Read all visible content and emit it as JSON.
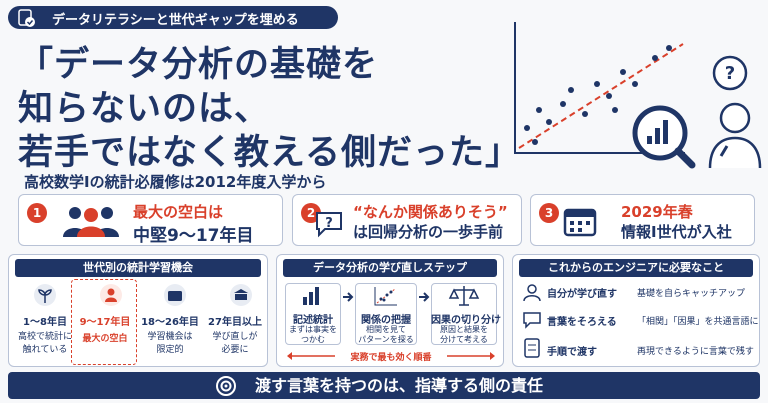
{
  "header": {
    "tag": "データリテラシーと世代ギャップを埋める",
    "title_lines": [
      "「データ分析の基礎を",
      "知らないのは、",
      "若手ではなく教える側だった」"
    ],
    "subtitle": "高校数学Ⅰの統計必履修は2012年度入学から"
  },
  "cards": [
    {
      "number": "1",
      "lines": [
        "最大の空白は",
        "中堅9〜17年目"
      ]
    },
    {
      "number": "2",
      "lines": [
        "“なんか関係ありそう”",
        "は回帰分析の一歩手前"
      ]
    },
    {
      "number": "3",
      "lines": [
        "2029年春",
        "情報Ⅰ世代が入社"
      ]
    }
  ],
  "generations": {
    "title": "世代別の統計学習機会",
    "items": [
      {
        "years": "1〜8年目",
        "lines": [
          "高校で統計に",
          "触れている"
        ]
      },
      {
        "years": "9〜17年目",
        "lines": [
          "最大の空白"
        ]
      },
      {
        "years": "18〜26年目",
        "lines": [
          "学習機会は",
          "限定的"
        ]
      },
      {
        "years": "27年目以上",
        "lines": [
          "学び直しが",
          "必要に"
        ]
      }
    ]
  },
  "steps": {
    "title": "データ分析の学び直しステップ",
    "items": [
      {
        "name": "記述統計",
        "lines": [
          "まずは事実を",
          "つかむ"
        ]
      },
      {
        "name": "関係の把握",
        "lines": [
          "相関を見て",
          "パターンを探る"
        ]
      },
      {
        "name": "因果の切り分け",
        "lines": [
          "原因と結果を",
          "分けて考える"
        ]
      }
    ],
    "note": "実務で最も効く順番"
  },
  "needs": {
    "title": "これからのエンジニアに必要なこと",
    "items": [
      {
        "action": "自分が学び直す",
        "detail": "基礎を自らキャッチアップ"
      },
      {
        "action": "言葉をそろえる",
        "detail": "「相関」「因果」を共通言語に"
      },
      {
        "action": "手順で渡す",
        "detail": "再現できるように言葉で残す"
      }
    ]
  },
  "footer": "渡す言葉を持つのは、指導する側の責任"
}
